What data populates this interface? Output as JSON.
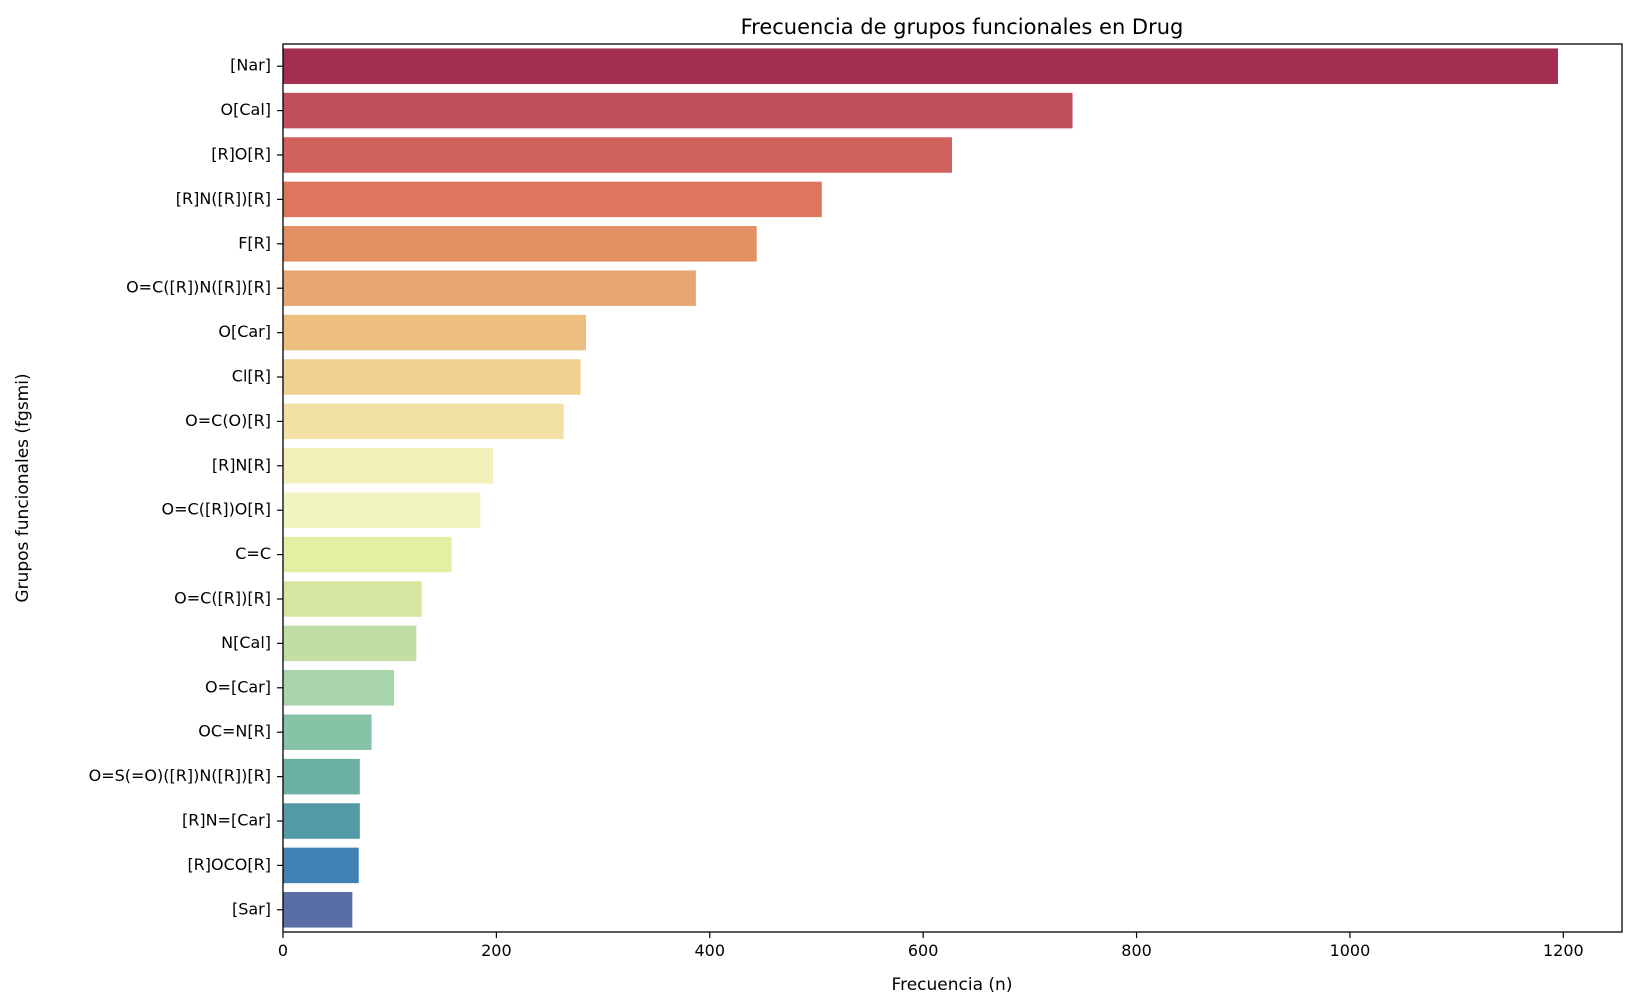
{
  "chart_data": {
    "type": "bar",
    "orientation": "horizontal",
    "title": "Frecuencia de grupos funcionales en Drug",
    "xlabel": "Frecuencia (n)",
    "ylabel": "Grupos funcionales (fgsmi)",
    "xlim": [
      0,
      1255
    ],
    "xticks": [
      0,
      200,
      400,
      600,
      800,
      1000,
      1200
    ],
    "grid": false,
    "categories": [
      "[Nar]",
      "O[Cal]",
      "[R]O[R]",
      "[R]N([R])[R]",
      "F[R]",
      "O=C([R])N([R])[R]",
      "O[Car]",
      "Cl[R]",
      "O=C(O)[R]",
      "[R]N[R]",
      "O=C([R])O[R]",
      "C=C",
      "O=C([R])[R]",
      "N[Cal]",
      "O=[Car]",
      "OC=N[R]",
      "O=S(=O)([R])N([R])[R]",
      "[R]N=[Car]",
      "[R]OCO[R]",
      "[Sar]"
    ],
    "values": [
      1195,
      740,
      627,
      505,
      444,
      387,
      284,
      279,
      263,
      197,
      185,
      158,
      130,
      125,
      104,
      83,
      72,
      72,
      71,
      65
    ],
    "colors": [
      "#a32e4f",
      "#c04d5b",
      "#d1615c",
      "#de765d",
      "#e38f64",
      "#e8a772",
      "#ecbf80",
      "#efd190",
      "#f2e0a4",
      "#f4f0ba",
      "#f2f5bf",
      "#e3efa2",
      "#d5e6a0",
      "#c1dea4",
      "#a7d4a8",
      "#87c3a6",
      "#6cb1a3",
      "#5499a6",
      "#4281b4",
      "#5a6ea6"
    ]
  }
}
